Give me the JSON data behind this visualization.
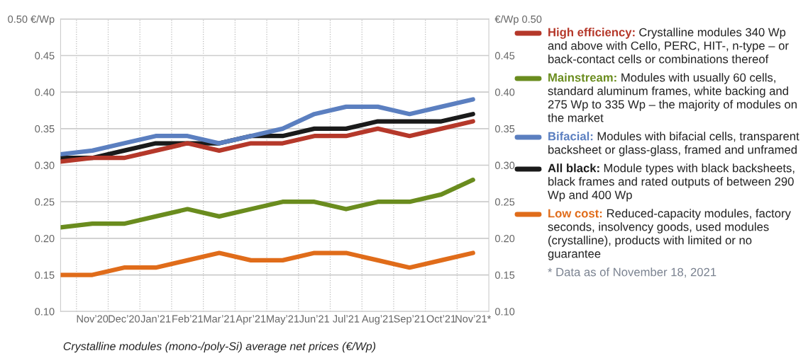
{
  "chart_data": {
    "type": "line",
    "title": "Crystalline modules (mono-/poly-Si) average net prices (€/Wp)",
    "categories": [
      null,
      "Nov’20",
      "Dec’20",
      "Jan’21",
      "Feb’21",
      "Mar’21",
      "Apr’21",
      "May’21",
      "Jun’21",
      "Jul’21",
      "Aug’21",
      "Sep’21",
      "Oct’21",
      "Nov’21*"
    ],
    "ylim": [
      0.1,
      0.5
    ],
    "yticks": [
      {
        "value": 0.1,
        "label": "0.10"
      },
      {
        "value": 0.15,
        "label": "0.15"
      },
      {
        "value": 0.2,
        "label": "0.20"
      },
      {
        "value": 0.25,
        "label": "0.25"
      },
      {
        "value": 0.3,
        "label": "0.30"
      },
      {
        "value": 0.35,
        "label": "0.35"
      },
      {
        "value": 0.4,
        "label": "0.40"
      },
      {
        "value": 0.45,
        "label": "0.45"
      },
      {
        "value": 0.5,
        "label": "0.50 €/Wp"
      }
    ],
    "y2lim": [
      0.1,
      0.5
    ],
    "y2ticks": [
      {
        "value": 0.1,
        "label": "0.10"
      },
      {
        "value": 0.15,
        "label": "0.15"
      },
      {
        "value": 0.2,
        "label": "0.20"
      },
      {
        "value": 0.25,
        "label": "0.25"
      },
      {
        "value": 0.3,
        "label": "0.30"
      },
      {
        "value": 0.35,
        "label": "0.35"
      },
      {
        "value": 0.4,
        "label": "0.40"
      },
      {
        "value": 0.45,
        "label": "0.45"
      },
      {
        "value": 0.5,
        "label": "€/Wp 0.50"
      }
    ],
    "grid": "xy",
    "legend": "right",
    "marker": "none",
    "line_style": "solid",
    "series": [
      {
        "name": "High efficiency:",
        "color": "#b5382a",
        "values": [
          0.305,
          0.31,
          0.31,
          0.32,
          0.33,
          0.32,
          0.33,
          0.33,
          0.34,
          0.34,
          0.35,
          0.34,
          0.35,
          0.36
        ]
      },
      {
        "name": "Mainstream:",
        "color": "#6a8c1e",
        "values": [
          0.215,
          0.22,
          0.22,
          0.23,
          0.24,
          0.23,
          0.24,
          0.25,
          0.25,
          0.24,
          0.25,
          0.25,
          0.26,
          0.28
        ]
      },
      {
        "name": "Bifacial:",
        "color": "#5b7fc0",
        "values": [
          0.315,
          0.32,
          0.33,
          0.34,
          0.34,
          0.33,
          0.34,
          0.35,
          0.37,
          0.38,
          0.38,
          0.37,
          0.38,
          0.39
        ]
      },
      {
        "name": "All black:",
        "color": "#1a1a1a",
        "values": [
          0.31,
          0.31,
          0.32,
          0.33,
          0.33,
          0.33,
          0.34,
          0.34,
          0.35,
          0.35,
          0.36,
          0.36,
          0.36,
          0.37
        ]
      },
      {
        "name": "Low cost:",
        "color": "#e06c1a",
        "values": [
          0.15,
          0.15,
          0.16,
          0.16,
          0.17,
          0.18,
          0.17,
          0.17,
          0.18,
          0.18,
          0.17,
          0.16,
          0.17,
          0.18
        ]
      }
    ],
    "annotations": [
      "Crystalline modules 340 Wp and above with Cello, PERC, HIT-, n-type – or back-contact cells or combinations thereof",
      "Modules with usually 60 cells, standard aluminum frames, white backing and 275 Wp to 335 Wp – the majority of modules on the market",
      "Modules with bifacial cells, transparent backsheet or glass-glass, framed and unframed",
      "Module types with black backsheets, black frames and rated outputs of between 290 Wp and 400 Wp",
      "Reduced-capacity modules, factory seconds, insolvency goods, used modules (crystalline), products with limited or no guarantee",
      "* Data as of November 18, 2021"
    ]
  }
}
